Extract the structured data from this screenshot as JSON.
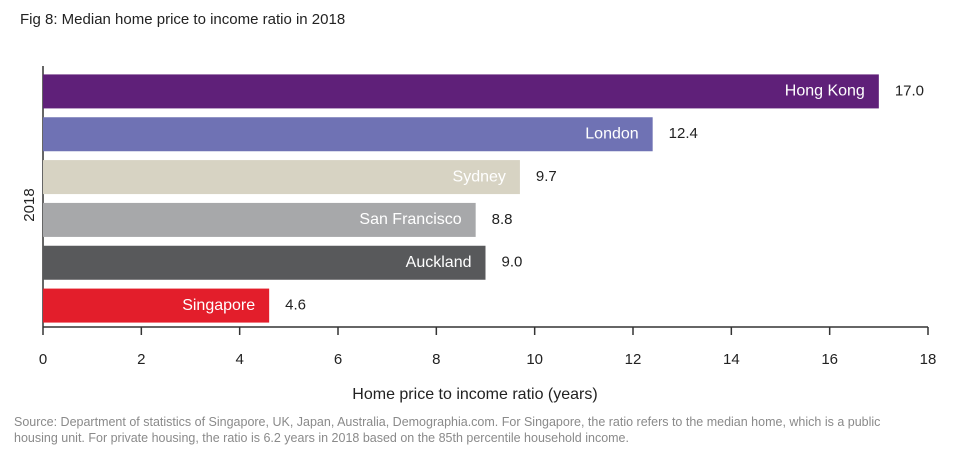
{
  "chart_data": {
    "type": "bar",
    "orientation": "horizontal",
    "title": "Fig 8: Median home price to income ratio in 2018",
    "y_label": "2018",
    "x_label": "Home price to income ratio (years)",
    "categories": [
      "Hong Kong",
      "London",
      "Sydney",
      "San Francisco",
      "Auckland",
      "Singapore"
    ],
    "values": [
      17.0,
      12.4,
      9.7,
      8.8,
      9.0,
      4.6
    ],
    "value_labels": [
      "17.0",
      "12.4",
      "9.7",
      "8.8",
      "9.0",
      "4.6"
    ],
    "colors": [
      "#5f2079",
      "#6f72b4",
      "#d7d3c3",
      "#a7a8aa",
      "#58595b",
      "#e31e2b"
    ],
    "xlim": [
      0,
      18
    ],
    "xticks": [
      0,
      2,
      4,
      6,
      8,
      10,
      12,
      14,
      16,
      18
    ],
    "source": "Source: Department of statistics of Singapore, UK, Japan, Australia, Demographia.com. For Singapore, the ratio refers to the median home, which is a public housing unit. For private housing, the ratio is 6.2 years in 2018 based on the 85th percentile household income."
  }
}
